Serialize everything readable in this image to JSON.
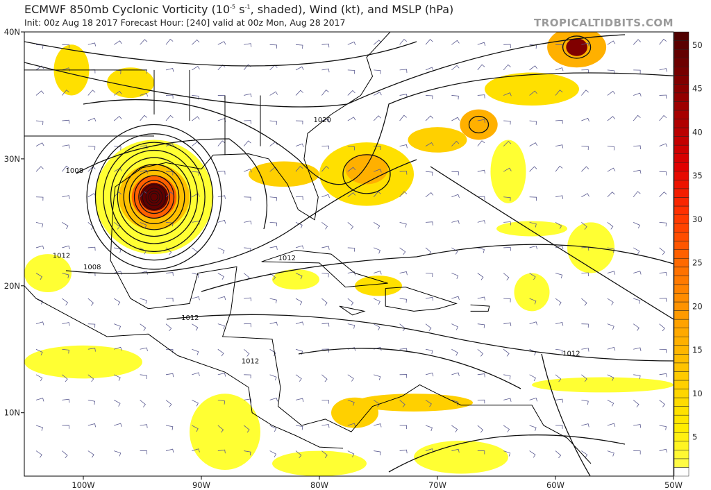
{
  "header": {
    "title_prefix": "ECMWF 850mb Cyclonic Vorticity (10",
    "title_exp1": "-5",
    "title_mid": " s",
    "title_exp2": "-1",
    "title_suffix": ", shaded), Wind (kt), and MSLP (hPa)",
    "subtitle": "Init: 00z Aug 18 2017   Forecast Hour: [240]   valid at 00z Mon, Aug 28 2017",
    "brand": "TROPICALTIDBITS.COM"
  },
  "map": {
    "lon_range": [
      -105,
      -50
    ],
    "lat_range": [
      5,
      40
    ],
    "lat_ticks": [
      {
        "value": 40,
        "label": "40N"
      },
      {
        "value": 30,
        "label": "30N"
      },
      {
        "value": 20,
        "label": "20N"
      },
      {
        "value": 10,
        "label": "10N"
      }
    ],
    "lon_ticks": [
      {
        "value": -100,
        "label": "100W"
      },
      {
        "value": -90,
        "label": "90W"
      },
      {
        "value": -80,
        "label": "80W"
      },
      {
        "value": -70,
        "label": "70W"
      },
      {
        "value": -60,
        "label": "60W"
      },
      {
        "value": -50,
        "label": "50W"
      }
    ],
    "pressure_labels": [
      {
        "text": "1020",
        "lon": -80.5,
        "lat": 32.9
      },
      {
        "text": "1008",
        "lon": -101.5,
        "lat": 28.9
      },
      {
        "text": "1012",
        "lon": -102.6,
        "lat": 22.2
      },
      {
        "text": "1008",
        "lon": -100.0,
        "lat": 21.3
      },
      {
        "text": "1012",
        "lon": -83.5,
        "lat": 22.0
      },
      {
        "text": "1012",
        "lon": -91.7,
        "lat": 17.3
      },
      {
        "text": "1012",
        "lon": -86.6,
        "lat": 13.9
      },
      {
        "text": "1012",
        "lon": -59.4,
        "lat": 14.5
      }
    ]
  },
  "colorbar": {
    "min": 1,
    "max": 51,
    "ticks": [
      "5",
      "10",
      "15",
      "20",
      "25",
      "30",
      "35",
      "40",
      "45",
      "50"
    ],
    "colors": [
      "#ffff55",
      "#ffec00",
      "#ffd000",
      "#ffb000",
      "#ff8c00",
      "#ff6000",
      "#ff3000",
      "#e00000",
      "#b00000",
      "#800000",
      "#500000"
    ]
  }
}
